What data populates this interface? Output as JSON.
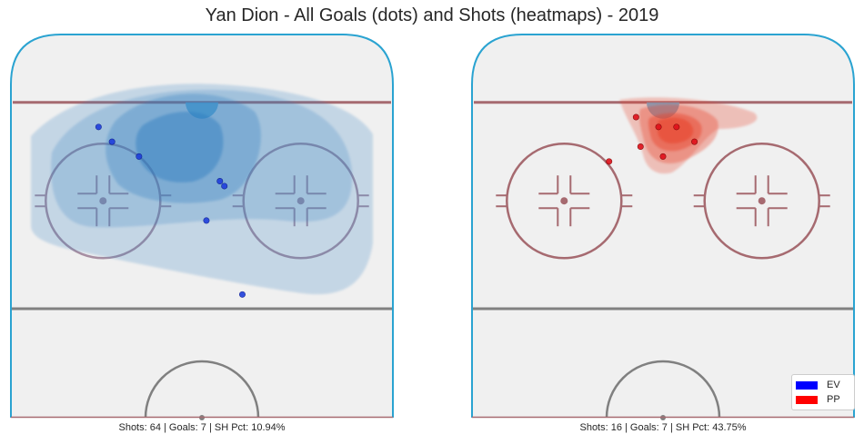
{
  "title": "Yan Dion - All Goals (dots) and Shots (heatmaps) - 2019",
  "colors": {
    "boards": "#2aa3d1",
    "red_line": "#a66a70",
    "blue_line": "#808080",
    "ice": "#f0f0f0",
    "ev": "#0000ff",
    "pp": "#ff0000",
    "ev_heat": "#2f7dc0",
    "pp_heat": "#e8422a",
    "crease_blue": "#63b3dc"
  },
  "legend": {
    "items": [
      {
        "label": "EV",
        "color": "#0000ff"
      },
      {
        "label": "PP",
        "color": "#ff0000"
      }
    ]
  },
  "chart_data": [
    {
      "type": "scatter",
      "title": "",
      "caption": "Shots: 64 | Goals: 7 | SH Pct: 10.94%",
      "situation": "EV",
      "heatmap": "kde",
      "points": [
        {
          "x": 50,
          "y": 9
        },
        {
          "x": 65,
          "y": 1
        },
        {
          "x": 73,
          "y": 4
        },
        {
          "x": 72,
          "y": 5
        },
        {
          "x": 78,
          "y": -14
        },
        {
          "x": 81,
          "y": -20
        },
        {
          "x": 84,
          "y": -23
        }
      ]
    },
    {
      "type": "scatter",
      "title": "",
      "caption": "Shots: 16 | Goals: 7 | SH Pct: 43.75%",
      "situation": "PP",
      "heatmap": "kde",
      "points": [
        {
          "x": 77,
          "y": -12
        },
        {
          "x": 78,
          "y": 0
        },
        {
          "x": 80,
          "y": -5
        },
        {
          "x": 81,
          "y": 7
        },
        {
          "x": 84,
          "y": -1
        },
        {
          "x": 84,
          "y": 3
        },
        {
          "x": 86,
          "y": -6
        }
      ]
    }
  ]
}
